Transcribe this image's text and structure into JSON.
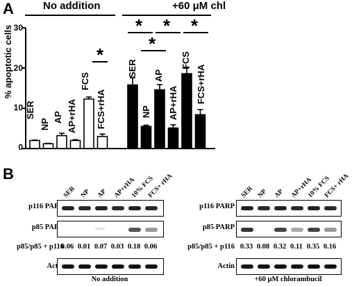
{
  "panel_a": {
    "letter": "A",
    "group_left": "No addition",
    "group_right": "+60 μM chl",
    "ylabel": "% apoptotic cells",
    "yticks": [
      "0",
      "10",
      "20",
      "30"
    ],
    "sig_marker": "*"
  },
  "chart_data": {
    "type": "bar",
    "ylabel": "% apoptotic cells",
    "ylim": [
      0,
      30
    ],
    "groups": [
      {
        "name": "No addition",
        "color": "#ffffff",
        "categories": [
          "SER",
          "NP",
          "AP",
          "AP+rHA",
          "FCS",
          "FCS+rHA"
        ],
        "values": [
          2.0,
          1.2,
          3.2,
          2.0,
          12.3,
          3.0
        ],
        "errors": [
          0.1,
          0.1,
          0.6,
          0.2,
          0.5,
          0.6
        ]
      },
      {
        "name": "+60 μM chl",
        "color": "#000000",
        "categories": [
          "SER",
          "NP",
          "AP",
          "AP+rHA",
          "FCS",
          "FCS+rHA"
        ],
        "values": [
          15.8,
          5.5,
          14.6,
          5.1,
          18.6,
          8.4
        ],
        "errors": [
          1.8,
          0.3,
          1.3,
          0.8,
          1.6,
          1.3
        ]
      }
    ]
  },
  "panel_b": {
    "letter": "B",
    "lanes": [
      "SER",
      "NP",
      "AP",
      "AP+rHA",
      "10% FCS",
      "FCS+ rHA"
    ],
    "row_labels": [
      "p116 PARP",
      "p85 PARP",
      "p85/p85 + p116",
      "Actin"
    ],
    "left": {
      "caption": "No addition",
      "ratios": [
        "0.06",
        "0.01",
        "0.07",
        "0.03",
        "0.18",
        "0.06"
      ]
    },
    "right": {
      "caption": "+60 μM chlorambucil",
      "ratios": [
        "0.33",
        "0.08",
        "0.32",
        "0.11",
        "0.35",
        "0.16"
      ]
    }
  }
}
